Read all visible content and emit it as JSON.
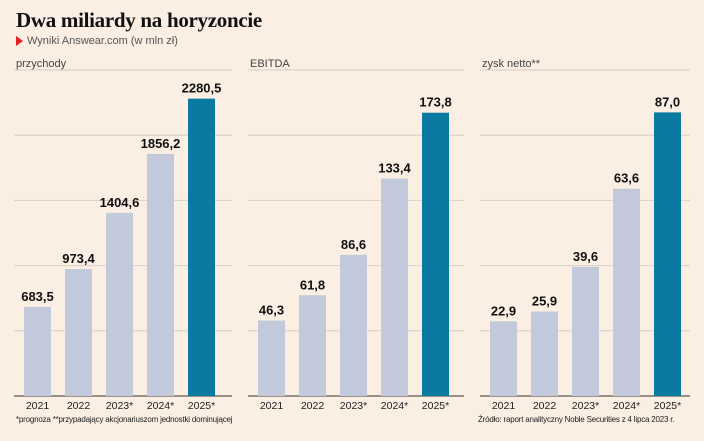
{
  "header": {
    "title": "Dwa miliardy na horyzoncie",
    "subtitle": "Wyniki Answear.com (w mln zł)"
  },
  "colors": {
    "bar": "#c1c9da",
    "highlight": "#0a7aa0",
    "grid": "#d9cfc6",
    "background": "#fbeee3"
  },
  "chart_data": [
    {
      "type": "bar",
      "title": "przychody",
      "categories": [
        "2021",
        "2022",
        "2023*",
        "2024*",
        "2025*"
      ],
      "values": [
        683.5,
        973.4,
        1404.6,
        1856.2,
        2280.5
      ],
      "labels": [
        "683,5",
        "973,4",
        "1404,6",
        "1856,2",
        "2280,5"
      ],
      "ylim": [
        0,
        2500
      ],
      "grid": true,
      "highlight_index": 4
    },
    {
      "type": "bar",
      "title": "EBITDA",
      "categories": [
        "2021",
        "2022",
        "2023*",
        "2024*",
        "2025*"
      ],
      "values": [
        46.3,
        61.8,
        86.6,
        133.4,
        173.8
      ],
      "labels": [
        "46,3",
        "61,8",
        "86,6",
        "133,4",
        "173,8"
      ],
      "ylim": [
        0,
        200
      ],
      "grid": true,
      "highlight_index": 4
    },
    {
      "type": "bar",
      "title": "zysk netto**",
      "categories": [
        "2021",
        "2022",
        "2023*",
        "2024*",
        "2025*"
      ],
      "values": [
        22.9,
        25.9,
        39.6,
        63.6,
        87.0
      ],
      "labels": [
        "22,9",
        "25,9",
        "39,6",
        "63,6",
        "87,0"
      ],
      "ylim": [
        0,
        100
      ],
      "grid": true,
      "highlight_index": 4
    }
  ],
  "footnotes": {
    "left": "*prognoza **przypadający akcjonariuszom jednostki dominującej",
    "right": "Źródło: raport analityczny Noble Securities z 4 lipca 2023 r."
  }
}
